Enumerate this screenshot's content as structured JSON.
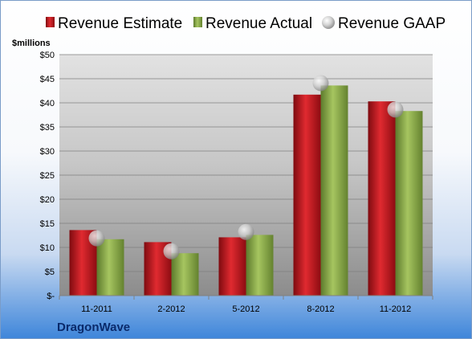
{
  "chart_data": {
    "type": "bar",
    "categories": [
      "11-2011",
      "2-2012",
      "5-2012",
      "8-2012",
      "11-2012"
    ],
    "series": [
      {
        "name": "Revenue Estimate",
        "kind": "bar",
        "color": "#c0141c",
        "values": [
          13.6,
          11.1,
          12.1,
          41.7,
          40.3
        ]
      },
      {
        "name": "Revenue Actual",
        "kind": "bar",
        "color": "#8aab4a",
        "values": [
          11.7,
          8.8,
          12.6,
          43.6,
          38.3
        ]
      },
      {
        "name": "Revenue GAAP",
        "kind": "marker",
        "color": "#b8b8b8",
        "values": [
          11.9,
          9.2,
          13.2,
          44.1,
          38.6
        ]
      }
    ],
    "ylabel": "$millions",
    "ylim": [
      0,
      50
    ],
    "yticks": [
      {
        "value": 0,
        "label": "$-"
      },
      {
        "value": 5,
        "label": "$5"
      },
      {
        "value": 10,
        "label": "$10"
      },
      {
        "value": 15,
        "label": "$15"
      },
      {
        "value": 20,
        "label": "$20"
      },
      {
        "value": 25,
        "label": "$25"
      },
      {
        "value": 30,
        "label": "$30"
      },
      {
        "value": 35,
        "label": "$35"
      },
      {
        "value": 40,
        "label": "$40"
      },
      {
        "value": 45,
        "label": "$45"
      },
      {
        "value": 50,
        "label": "$50"
      }
    ],
    "grid": true,
    "legend": "top",
    "company": "DragonWave"
  }
}
